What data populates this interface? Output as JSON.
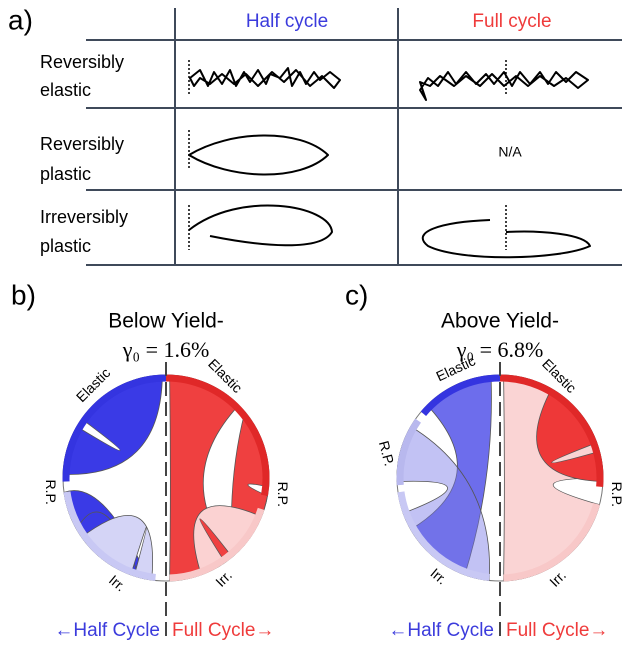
{
  "panel_a": {
    "label": "a)",
    "columns": [
      "Half cycle",
      "Full cycle"
    ],
    "rows": [
      {
        "lines": [
          "Reversibly",
          "elastic"
        ]
      },
      {
        "lines": [
          "Reversibly",
          "plastic"
        ]
      },
      {
        "lines": [
          "Irreversibly",
          "plastic"
        ]
      }
    ],
    "na": "N/A"
  },
  "panels": [
    {
      "label": "b)",
      "title": "Below Yield-",
      "gamma": "γ₀ = 1.6%",
      "left_labels": [
        "Elastic",
        "R.P.",
        "Irr."
      ],
      "right_labels": [
        "Elastic",
        "R.P.",
        "Irr."
      ],
      "footer_left": "←Half Cycle",
      "footer_right": "Full Cycle→"
    },
    {
      "label": "c)",
      "title": "Above Yield-",
      "gamma": "γ₀ = 6.8%",
      "left_labels": [
        "Elastic",
        "R.P.",
        "Irr."
      ],
      "right_labels": [
        "Elastic",
        "R.P.",
        "Irr."
      ],
      "footer_left": "←Half Cycle",
      "footer_right": "Full Cycle→"
    }
  ]
}
